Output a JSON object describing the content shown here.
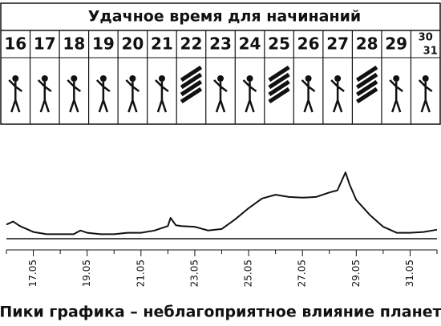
{
  "header": {
    "title": "Удачное время для начинаний"
  },
  "days": [
    "16",
    "17",
    "18",
    "19",
    "20",
    "21",
    "22",
    "23",
    "24",
    "25",
    "26",
    "27",
    "28",
    "29",
    "30",
    "31"
  ],
  "chart_data": {
    "type": "line",
    "x": [
      16,
      16.25,
      16.5,
      17,
      17.5,
      18,
      18.5,
      18.75,
      19,
      19.5,
      20,
      20.5,
      21,
      21.5,
      22,
      22.1,
      22.3,
      22.5,
      23,
      23.5,
      24,
      24.5,
      25,
      25.5,
      26,
      26.5,
      27,
      27.5,
      28,
      28.3,
      28.6,
      28.75,
      29,
      29.5,
      30,
      30.5,
      31,
      31.5,
      32
    ],
    "values": [
      19,
      23,
      17,
      9,
      6,
      6,
      6,
      11,
      8,
      6,
      6,
      8,
      8,
      11,
      17,
      28,
      18,
      17,
      16,
      11,
      13,
      26,
      41,
      54,
      59,
      56,
      55,
      56,
      62,
      65,
      89,
      73,
      52,
      32,
      16,
      8,
      8,
      9,
      12
    ],
    "color": "#111111",
    "xlim": [
      16,
      32
    ],
    "ylim": [
      0,
      100
    ],
    "xticks": [
      {
        "value": 17,
        "label": "17.05"
      },
      {
        "value": 19,
        "label": "19.05"
      },
      {
        "value": 21,
        "label": "21.05"
      },
      {
        "value": 23,
        "label": "23.05"
      },
      {
        "value": 25,
        "label": "25.05"
      },
      {
        "value": 27,
        "label": "27.05"
      },
      {
        "value": 29,
        "label": "29.05"
      },
      {
        "value": 31,
        "label": "31.05"
      }
    ],
    "xminorticks": [
      16,
      18,
      20,
      22,
      24,
      26,
      28,
      30,
      32
    ],
    "caption": "Пики графика – неблагоприятное влияние планет"
  }
}
